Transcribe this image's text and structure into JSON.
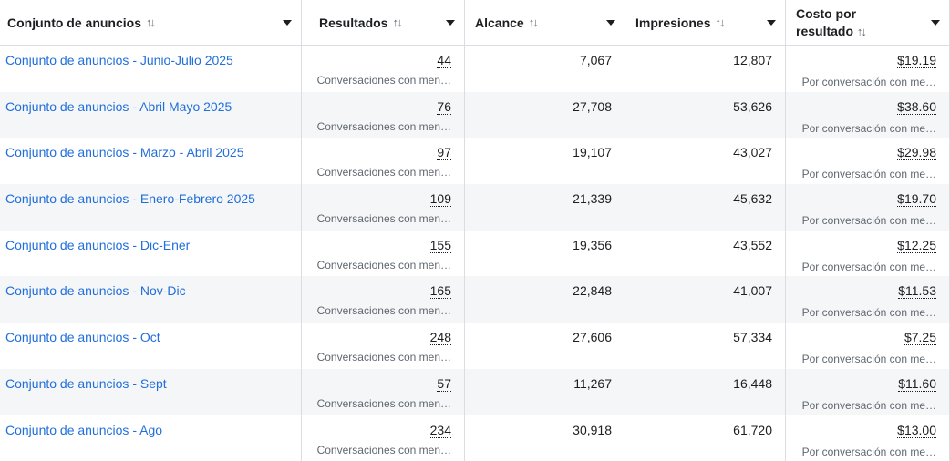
{
  "header": {
    "col_name": "Conjunto de anuncios",
    "col_results": "Resultados",
    "col_reach": "Alcance",
    "col_impressions": "Impresiones",
    "col_cost_line1": "Costo por",
    "col_cost_line2": "resultado",
    "sort_glyph": "↑↓"
  },
  "rows": [
    {
      "name": "Conjunto de anuncios - Junio-Julio 2025",
      "results": "44",
      "results_sub": "Conversaciones con men…",
      "reach": "7,067",
      "impressions": "12,807",
      "cost": "$19.19",
      "cost_sub": "Por conversación con me…"
    },
    {
      "name": "Conjunto de anuncios - Abril Mayo 2025",
      "results": "76",
      "results_sub": "Conversaciones con men…",
      "reach": "27,708",
      "impressions": "53,626",
      "cost": "$38.60",
      "cost_sub": "Por conversación con me…"
    },
    {
      "name": "Conjunto de anuncios - Marzo - Abril 2025",
      "results": "97",
      "results_sub": "Conversaciones con men…",
      "reach": "19,107",
      "impressions": "43,027",
      "cost": "$29.98",
      "cost_sub": "Por conversación con me…"
    },
    {
      "name": "Conjunto de anuncios - Enero-Febrero 2025",
      "results": "109",
      "results_sub": "Conversaciones con men…",
      "reach": "21,339",
      "impressions": "45,632",
      "cost": "$19.70",
      "cost_sub": "Por conversación con me…"
    },
    {
      "name": "Conjunto de anuncios - Dic-Ener",
      "results": "155",
      "results_sub": "Conversaciones con men…",
      "reach": "19,356",
      "impressions": "43,552",
      "cost": "$12.25",
      "cost_sub": "Por conversación con me…"
    },
    {
      "name": "Conjunto de anuncios - Nov-Dic",
      "results": "165",
      "results_sub": "Conversaciones con men…",
      "reach": "22,848",
      "impressions": "41,007",
      "cost": "$11.53",
      "cost_sub": "Por conversación con me…"
    },
    {
      "name": "Conjunto de anuncios - Oct",
      "results": "248",
      "results_sub": "Conversaciones con men…",
      "reach": "27,606",
      "impressions": "57,334",
      "cost": "$7.25",
      "cost_sub": "Por conversación con me…"
    },
    {
      "name": "Conjunto de anuncios - Sept",
      "results": "57",
      "results_sub": "Conversaciones con men…",
      "reach": "11,267",
      "impressions": "16,448",
      "cost": "$11.60",
      "cost_sub": "Por conversación con me…"
    },
    {
      "name": "Conjunto de anuncios - Ago",
      "results": "234",
      "results_sub": "Conversaciones con men…",
      "reach": "30,918",
      "impressions": "61,720",
      "cost": "$13.00",
      "cost_sub": "Por conversación con me…"
    }
  ],
  "colors": {
    "link": "#216fdb",
    "row_alt": "#f5f6f7",
    "border": "#dadde1",
    "muted": "#606770"
  }
}
